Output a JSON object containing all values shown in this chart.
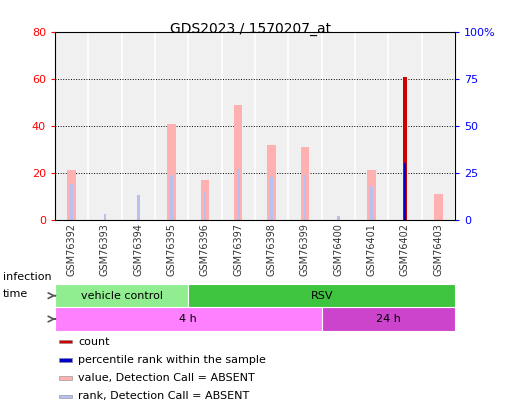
{
  "title": "GDS2023 / 1570207_at",
  "samples": [
    "GSM76392",
    "GSM76393",
    "GSM76394",
    "GSM76395",
    "GSM76396",
    "GSM76397",
    "GSM76398",
    "GSM76399",
    "GSM76400",
    "GSM76401",
    "GSM76402",
    "GSM76403"
  ],
  "value_absent": [
    21.0,
    0.0,
    0.0,
    41.0,
    17.0,
    49.0,
    32.0,
    31.0,
    0.0,
    21.0,
    0.0,
    11.0
  ],
  "rank_absent": [
    19.0,
    0.0,
    13.0,
    24.0,
    15.0,
    27.0,
    23.0,
    24.0,
    2.0,
    18.0,
    0.0,
    0.0
  ],
  "rank_absent2": [
    0.0,
    3.0,
    0.0,
    0.0,
    0.0,
    0.0,
    0.0,
    0.0,
    0.0,
    0.0,
    0.0,
    0.0
  ],
  "count": [
    0.0,
    0.0,
    0.0,
    0.0,
    0.0,
    0.0,
    0.0,
    0.0,
    0.0,
    0.0,
    61.0,
    0.0
  ],
  "percentile_rank": [
    0.0,
    0.0,
    0.0,
    0.0,
    0.0,
    0.0,
    0.0,
    0.0,
    0.0,
    0.0,
    30.0,
    0.0
  ],
  "left_y_ticks": [
    0,
    20,
    40,
    60,
    80
  ],
  "right_y_ticks": [
    0,
    25,
    50,
    75,
    100
  ],
  "right_y_labels": [
    "0",
    "25",
    "50",
    "75",
    "100%"
  ],
  "ylim_left": [
    0,
    80
  ],
  "ylim_right": [
    0,
    100
  ],
  "infection_groups": [
    {
      "label": "vehicle control",
      "start": 0,
      "end": 3,
      "color": "#90ee90"
    },
    {
      "label": "RSV",
      "start": 4,
      "end": 11,
      "color": "#3ec43e"
    }
  ],
  "time_groups": [
    {
      "label": "4 h",
      "start": 0,
      "end": 7,
      "color": "#ff80ff"
    },
    {
      "label": "24 h",
      "start": 8,
      "end": 11,
      "color": "#cc44cc"
    }
  ],
  "color_value_absent": "#ffb0b0",
  "color_rank_absent": "#b8c0f0",
  "color_count": "#cc0000",
  "color_percentile": "#0000cc",
  "bg_plot": "#f0f0f0",
  "bg_label_row": "#d0d0d0",
  "legend_items": [
    {
      "label": "count",
      "color": "#cc0000"
    },
    {
      "label": "percentile rank within the sample",
      "color": "#0000cc"
    },
    {
      "label": "value, Detection Call = ABSENT",
      "color": "#ffb0b0"
    },
    {
      "label": "rank, Detection Call = ABSENT",
      "color": "#b8c0f0"
    }
  ],
  "value_bar_width": 0.25,
  "rank_bar_width": 0.08,
  "count_bar_width": 0.12,
  "pct_bar_width": 0.08
}
